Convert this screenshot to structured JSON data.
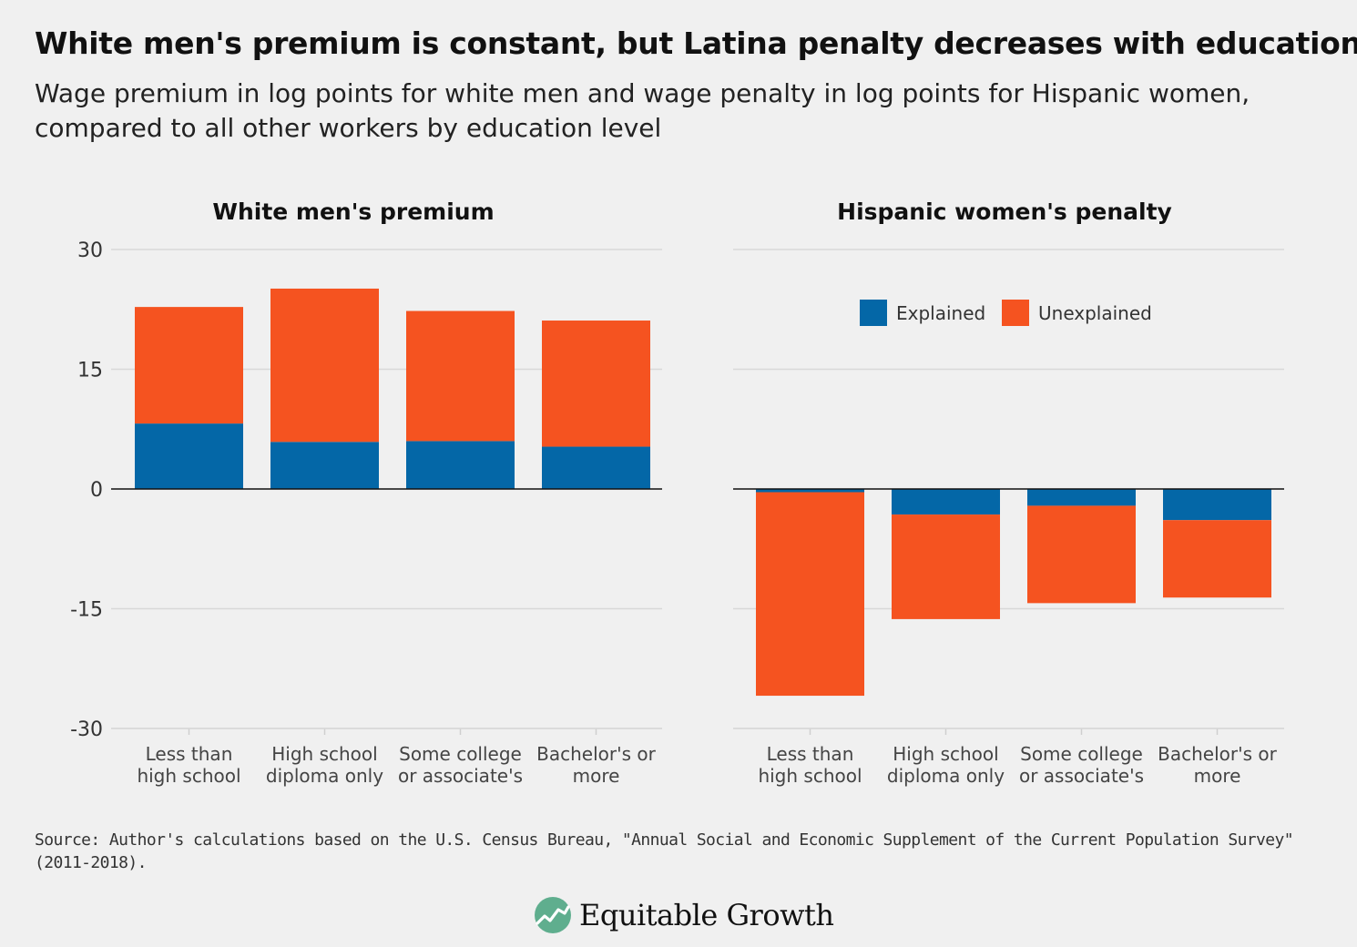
{
  "header": {
    "title": "White men's premium is constant, but Latina penalty decreases with education",
    "subtitle": "Wage premium in log points for white men and wage penalty in log points for Hispanic women, compared to all other workers by education level"
  },
  "colors": {
    "explained": "#0467a7",
    "unexplained": "#f55320",
    "grid": "#d8d8d8",
    "zero_line": "#111111",
    "background": "#f0f0f0",
    "logo_mark": "#5fae8e"
  },
  "chart_data": [
    {
      "type": "bar",
      "stacked": true,
      "title": "White men's premium",
      "categories": [
        [
          "Less than",
          "high school"
        ],
        [
          "High school",
          "diploma only"
        ],
        [
          "Some college",
          "or associate's"
        ],
        [
          "Bachelor's or",
          "more"
        ]
      ],
      "series": [
        {
          "name": "Explained",
          "values": [
            8.2,
            5.9,
            6.0,
            5.3
          ]
        },
        {
          "name": "Unexplained",
          "values": [
            14.6,
            19.2,
            16.3,
            15.8
          ]
        }
      ],
      "ylim": [
        -30,
        30
      ],
      "yticks": [
        "30",
        "15",
        "0",
        "-15",
        "-30"
      ],
      "ytick_values": [
        30,
        15,
        0,
        -15,
        -30
      ],
      "grid": true
    },
    {
      "type": "bar",
      "stacked": true,
      "title": "Hispanic women's penalty",
      "categories": [
        [
          "Less than",
          "high school"
        ],
        [
          "High school",
          "diploma only"
        ],
        [
          "Some college",
          "or associate's"
        ],
        [
          "Bachelor's or",
          "more"
        ]
      ],
      "series": [
        {
          "name": "Explained",
          "values": [
            -0.4,
            -3.2,
            -2.1,
            -3.9
          ]
        },
        {
          "name": "Unexplained",
          "values": [
            -25.5,
            -13.1,
            -12.2,
            -9.7
          ]
        }
      ],
      "ylim": [
        -30,
        30
      ],
      "grid": true,
      "legend_position": "top-center"
    }
  ],
  "legend": [
    {
      "name": "Explained",
      "color": "#0467a7"
    },
    {
      "name": "Unexplained",
      "color": "#f55320"
    }
  ],
  "footer": {
    "source": "Source: Author's calculations based on the U.S. Census Bureau, \"Annual Social and Economic Supplement of the Current Population Survey\" (2011-2018).",
    "logo_text": "Equitable Growth",
    "logo_icon": "rising-chart-leaf-icon"
  }
}
